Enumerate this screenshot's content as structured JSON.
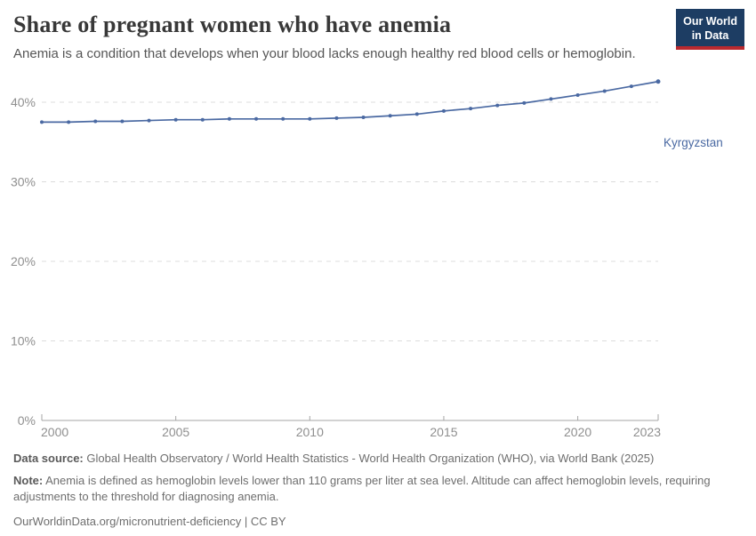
{
  "header": {
    "title": "Share of pregnant women who have anemia",
    "subtitle": "Anemia is a condition that develops when your blood lacks enough healthy red blood cells or hemoglobin.",
    "logo": {
      "line1": "Our World",
      "line2": "in Data"
    }
  },
  "chart_data": {
    "type": "line",
    "title": "Share of pregnant women who have anemia",
    "xlabel": "",
    "ylabel": "",
    "unit": "%",
    "grid": "horizontal-dashed",
    "legend_position": "end-of-line-label",
    "ylim": [
      0,
      45
    ],
    "x": [
      2000,
      2001,
      2002,
      2003,
      2004,
      2005,
      2006,
      2007,
      2008,
      2009,
      2010,
      2011,
      2012,
      2013,
      2014,
      2015,
      2016,
      2017,
      2018,
      2019,
      2020,
      2021,
      2022,
      2023
    ],
    "series": [
      {
        "name": "Kyrgyzstan",
        "color": "#4a69a2",
        "values": [
          37.5,
          37.5,
          37.6,
          37.6,
          37.7,
          37.8,
          37.8,
          37.9,
          37.9,
          37.9,
          37.9,
          38.0,
          38.1,
          38.3,
          38.5,
          38.9,
          39.2,
          39.6,
          39.9,
          40.4,
          40.9,
          41.4,
          42.0,
          42.6
        ]
      }
    ],
    "xticks": [
      2000,
      2005,
      2010,
      2015,
      2020,
      2023
    ],
    "yticks": [
      {
        "value": 0,
        "label": "0%"
      },
      {
        "value": 10,
        "label": "10%"
      },
      {
        "value": 20,
        "label": "20%"
      },
      {
        "value": 30,
        "label": "30%"
      },
      {
        "value": 40,
        "label": "40%"
      }
    ]
  },
  "footer": {
    "source_label": "Data source:",
    "source_text": "Global Health Observatory / World Health Statistics - World Health Organization (WHO), via World Bank (2025)",
    "note_label": "Note:",
    "note_text": "Anemia is defined as hemoglobin levels lower than 110 grams per liter at sea level. Altitude can affect hemoglobin levels, requiring adjustments to the threshold for diagnosing anemia.",
    "url_line": "OurWorldinData.org/micronutrient-deficiency | CC BY"
  },
  "colors": {
    "accent": "#4a69a2",
    "grid": "#dcdcdc",
    "axis": "#a5a5a5",
    "tick_label": "#8f8f8f",
    "logo_bg": "#1d3d63",
    "logo_bar": "#b9292f"
  }
}
